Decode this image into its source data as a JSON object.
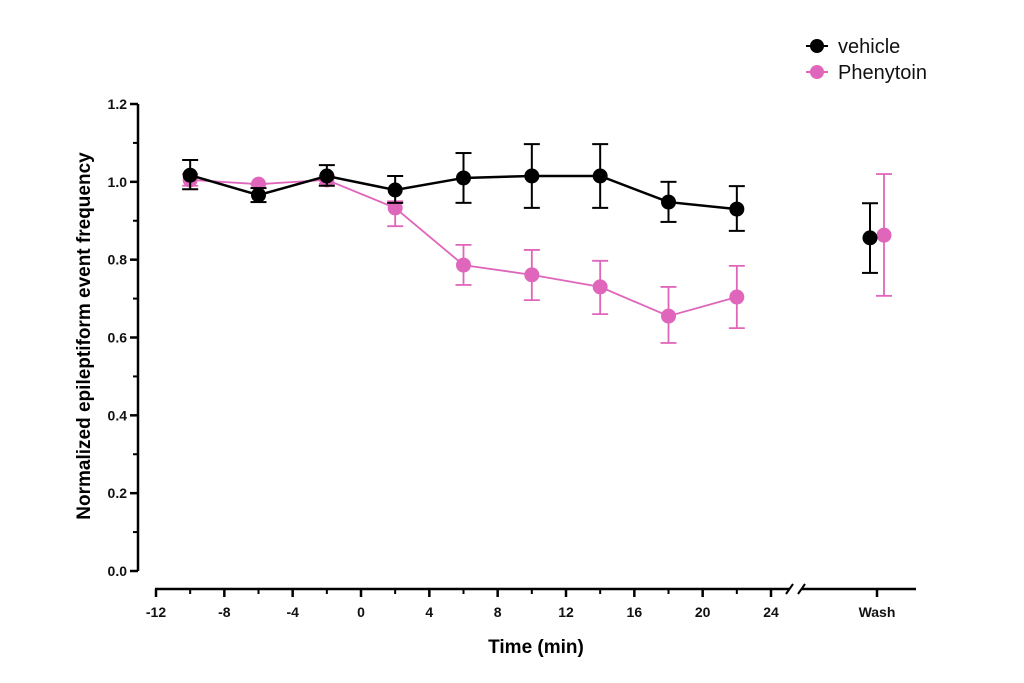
{
  "chart_data": {
    "type": "line",
    "title": "",
    "xlabel": "Time (min)",
    "ylabel": "Normalized epileptiform event frequency",
    "ylim": [
      0,
      1.2
    ],
    "xlim": [
      -12,
      24
    ],
    "y_ticks": [
      "0.0",
      "0.2",
      "0.4",
      "0.6",
      "0.8",
      "1.0",
      "1.2"
    ],
    "y_tick_values": [
      0,
      0.2,
      0.4,
      0.6,
      0.8,
      1.0,
      1.2
    ],
    "x_ticks": [
      "-12",
      "-8",
      "-4",
      "0",
      "4",
      "8",
      "12",
      "16",
      "20",
      "24"
    ],
    "x_tick_values": [
      -12,
      -8,
      -4,
      0,
      4,
      8,
      12,
      16,
      20,
      24
    ],
    "x_break_label": "Wash",
    "grid": false,
    "legend_position": "top-right",
    "series": [
      {
        "name": "vehicle",
        "color": "#000000",
        "x": [
          -10,
          -6,
          -2,
          2,
          6,
          10,
          14,
          18,
          22
        ],
        "y": [
          1.017,
          0.966,
          1.015,
          0.979,
          1.01,
          1.015,
          1.015,
          0.948,
          0.93
        ],
        "err_low": [
          0.981,
          0.948,
          0.99,
          0.946,
          0.946,
          0.933,
          0.933,
          0.897,
          0.874
        ],
        "err_high": [
          1.056,
          0.984,
          1.043,
          1.015,
          1.074,
          1.097,
          1.097,
          1.0,
          0.989
        ],
        "wash": {
          "y": 0.856,
          "err_low": 0.766,
          "err_high": 0.945
        }
      },
      {
        "name": "Phenytoin",
        "color": "#e066bb",
        "x": [
          -10,
          -6,
          -2,
          2,
          6,
          10,
          14,
          18,
          22
        ],
        "y": [
          1.005,
          0.994,
          1.005,
          0.933,
          0.786,
          0.761,
          0.73,
          0.655,
          0.704
        ],
        "err_low": [
          0.99,
          0.994,
          0.995,
          0.886,
          0.735,
          0.696,
          0.66,
          0.586,
          0.624
        ],
        "err_high": [
          1.02,
          0.994,
          1.015,
          0.95,
          0.838,
          0.825,
          0.797,
          0.73,
          0.784
        ],
        "wash": {
          "y": 0.863,
          "err_low": 0.707,
          "err_high": 1.02
        }
      }
    ]
  }
}
